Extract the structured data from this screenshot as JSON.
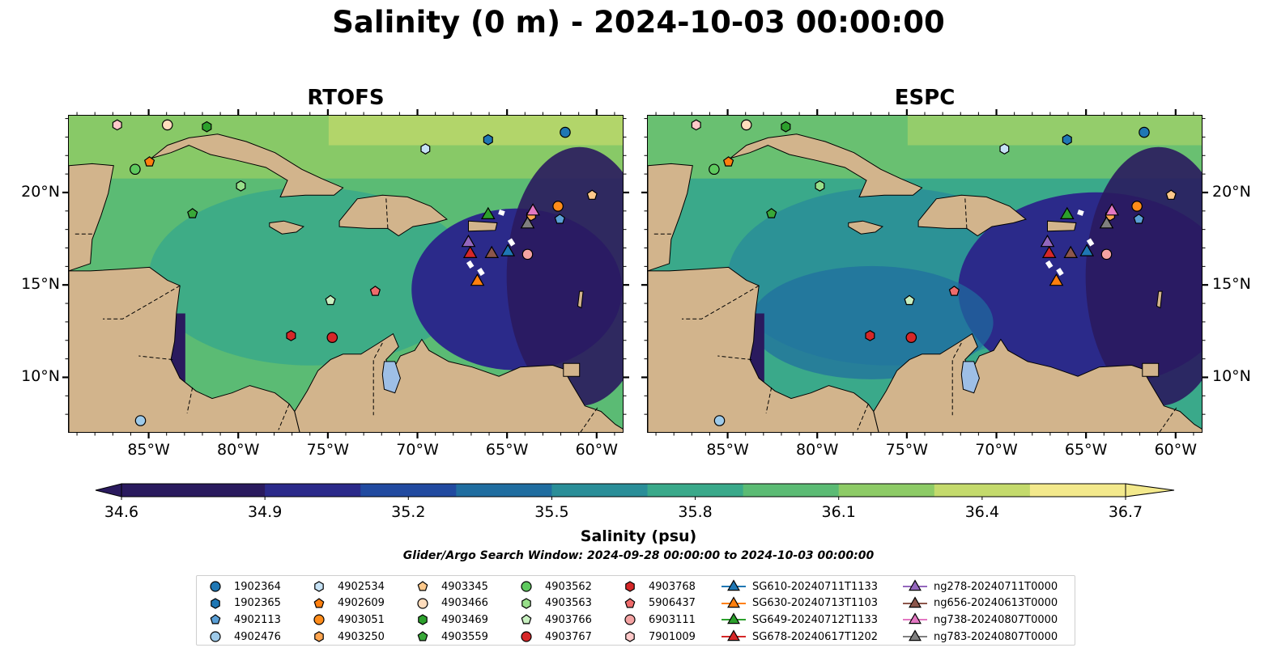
{
  "title": "Salinity (0 m) - 2024-10-03 00:00:00",
  "panels": [
    {
      "title": "RTOFS"
    },
    {
      "title": "ESPC"
    }
  ],
  "lon_ticks": [
    "85°W",
    "80°W",
    "75°W",
    "70°W",
    "65°W",
    "60°W"
  ],
  "lat_ticks": [
    "20°N",
    "15°N",
    "10°N"
  ],
  "map_extent": {
    "lon": [
      -89.5,
      -58.5
    ],
    "lat": [
      7.0,
      24.2
    ]
  },
  "colorbar": {
    "ticks": [
      "34.6",
      "34.9",
      "35.2",
      "35.5",
      "35.8",
      "36.1",
      "36.4",
      "36.7"
    ],
    "label": "Salinity (psu)",
    "range": [
      34.6,
      36.7
    ],
    "colors": [
      "#2a1a5e",
      "#2b2a8a",
      "#214aa0",
      "#1f6da0",
      "#2a8e98",
      "#3aa98a",
      "#5bbb74",
      "#8dcb66",
      "#c4da6c",
      "#f3e98c"
    ]
  },
  "search_window": "Glider/Argo Search Window: 2024-09-28 00:00:00 to 2024-10-03 00:00:00",
  "legend": [
    {
      "label": "1902364",
      "marker": "circle",
      "color": "#1f77b4"
    },
    {
      "label": "1902365",
      "marker": "hexagon",
      "color": "#1f77b4"
    },
    {
      "label": "4902113",
      "marker": "pentagon",
      "color": "#5a9fd6"
    },
    {
      "label": "4902476",
      "marker": "circle",
      "color": "#9ecae9"
    },
    {
      "label": "4902534",
      "marker": "hexagon",
      "color": "#c6e2f5"
    },
    {
      "label": "4902609",
      "marker": "pentagon",
      "color": "#ff7f0e"
    },
    {
      "label": "4903051",
      "marker": "circle",
      "color": "#ff8c1a"
    },
    {
      "label": "4903250",
      "marker": "hexagon",
      "color": "#ffa54f"
    },
    {
      "label": "4903345",
      "marker": "pentagon",
      "color": "#ffc98b"
    },
    {
      "label": "4903466",
      "marker": "circle",
      "color": "#ffdcbc"
    },
    {
      "label": "4903469",
      "marker": "hexagon",
      "color": "#2ca02c"
    },
    {
      "label": "4903559",
      "marker": "pentagon",
      "color": "#39a839"
    },
    {
      "label": "4903562",
      "marker": "circle",
      "color": "#5ec95e"
    },
    {
      "label": "4903563",
      "marker": "hexagon",
      "color": "#98df8a"
    },
    {
      "label": "4903766",
      "marker": "pentagon",
      "color": "#c8f0c0"
    },
    {
      "label": "4903767",
      "marker": "circle",
      "color": "#d62728"
    },
    {
      "label": "4903768",
      "marker": "hexagon",
      "color": "#d62728"
    },
    {
      "label": "5906437",
      "marker": "pentagon",
      "color": "#ef6b6b"
    },
    {
      "label": "6903111",
      "marker": "circle",
      "color": "#f4a3a3"
    },
    {
      "label": "7901009",
      "marker": "hexagon",
      "color": "#ffc9c9"
    },
    {
      "label": "SG610-20240711T1133",
      "marker": "triangle",
      "color": "#1f77b4"
    },
    {
      "label": "SG630-20240713T1103",
      "marker": "triangle",
      "color": "#ff7f0e"
    },
    {
      "label": "SG649-20240712T1133",
      "marker": "triangle",
      "color": "#2ca02c"
    },
    {
      "label": "SG678-20240617T1202",
      "marker": "triangle",
      "color": "#d62728"
    },
    {
      "label": "ng278-20240711T0000",
      "marker": "triangle",
      "color": "#9467bd"
    },
    {
      "label": "ng656-20240613T0000",
      "marker": "triangle",
      "color": "#8c564b"
    },
    {
      "label": "ng738-20240807T0000",
      "marker": "triangle",
      "color": "#e377c2"
    },
    {
      "label": "ng783-20240807T0000",
      "marker": "triangle",
      "color": "#7f7f7f"
    }
  ],
  "observations": [
    {
      "id": "1902364",
      "lon": -61.8,
      "lat": 23.3
    },
    {
      "id": "1902365",
      "lon": -66.1,
      "lat": 22.9
    },
    {
      "id": "4902113",
      "lon": -62.1,
      "lat": 18.6
    },
    {
      "id": "4902476",
      "lon": -85.5,
      "lat": 7.7
    },
    {
      "id": "4902534",
      "lon": -69.6,
      "lat": 22.4
    },
    {
      "id": "4902609",
      "lon": -85.0,
      "lat": 21.7
    },
    {
      "id": "4903051",
      "lon": -62.2,
      "lat": 19.3
    },
    {
      "id": "4903250",
      "lon": -63.7,
      "lat": 18.8
    },
    {
      "id": "4903345",
      "lon": -60.3,
      "lat": 19.9
    },
    {
      "id": "4903466",
      "lon": -84.0,
      "lat": 23.7
    },
    {
      "id": "4903469",
      "lon": -81.8,
      "lat": 23.6
    },
    {
      "id": "4903559",
      "lon": -82.6,
      "lat": 18.9
    },
    {
      "id": "4903562",
      "lon": -85.8,
      "lat": 21.3
    },
    {
      "id": "4903563",
      "lon": -79.9,
      "lat": 20.4
    },
    {
      "id": "4903766",
      "lon": -74.9,
      "lat": 14.2
    },
    {
      "id": "4903767",
      "lon": -74.8,
      "lat": 12.2
    },
    {
      "id": "4903768",
      "lon": -77.1,
      "lat": 12.3
    },
    {
      "id": "5906437",
      "lon": -72.4,
      "lat": 14.7
    },
    {
      "id": "6903111",
      "lon": -63.9,
      "lat": 16.7
    },
    {
      "id": "7901009",
      "lon": -86.8,
      "lat": 23.7
    },
    {
      "id": "SG610-20240711T1133",
      "lon": -65.0,
      "lat": 16.9
    },
    {
      "id": "SG630-20240713T1103",
      "lon": -66.7,
      "lat": 15.3
    },
    {
      "id": "SG649-20240712T1133",
      "lon": -66.1,
      "lat": 18.9
    },
    {
      "id": "SG678-20240617T1202",
      "lon": -67.1,
      "lat": 16.8
    },
    {
      "id": "ng278-20240711T0000",
      "lon": -67.2,
      "lat": 17.4
    },
    {
      "id": "ng656-20240613T0000",
      "lon": -65.9,
      "lat": 16.8
    },
    {
      "id": "ng738-20240807T0000",
      "lon": -63.6,
      "lat": 19.1
    },
    {
      "id": "ng783-20240807T0000",
      "lon": -63.9,
      "lat": 18.4
    }
  ]
}
